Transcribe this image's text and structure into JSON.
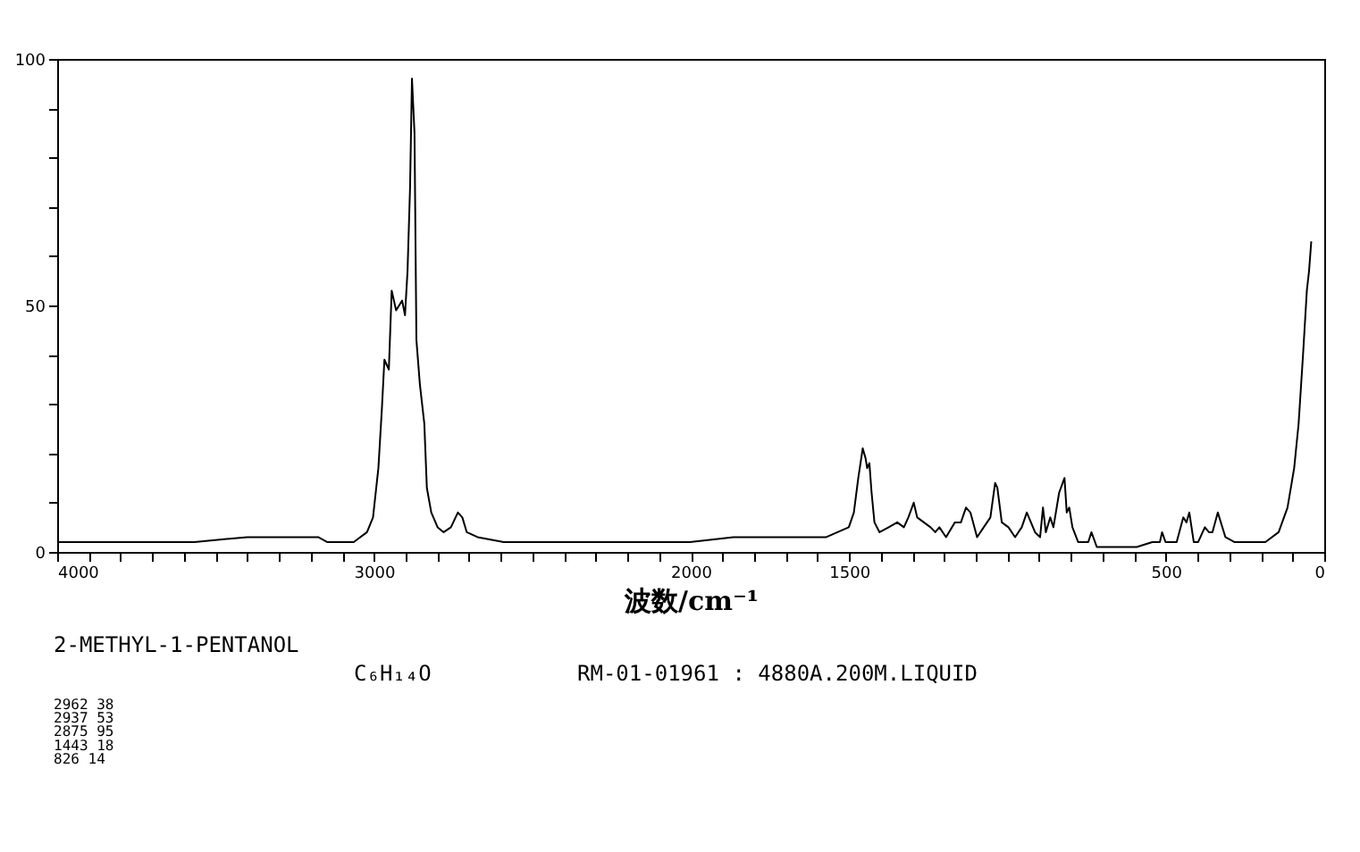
{
  "chart_data": {
    "type": "line",
    "xlabel": "波数/cm⁻¹",
    "x": [
      4000,
      3707,
      3567,
      3400,
      3176,
      3148,
      3064,
      3022,
      3003,
      2986,
      2975,
      2967,
      2953,
      2944,
      2930,
      2911,
      2902,
      2894,
      2886,
      2880,
      2872,
      2866,
      2855,
      2841,
      2833,
      2819,
      2799,
      2780,
      2757,
      2735,
      2721,
      2707,
      2673,
      2590,
      2310,
      2003,
      1865,
      1696,
      1572,
      1501,
      1485,
      1471,
      1457,
      1448,
      1443,
      1436,
      1429,
      1420,
      1404,
      1375,
      1348,
      1327,
      1313,
      1296,
      1285,
      1264,
      1243,
      1228,
      1215,
      1194,
      1166,
      1147,
      1131,
      1117,
      1096,
      1075,
      1054,
      1039,
      1032,
      1018,
      997,
      976,
      955,
      939,
      913,
      897,
      888,
      879,
      865,
      855,
      837,
      820,
      813,
      805,
      795,
      777,
      745,
      735,
      718,
      661,
      592,
      543,
      519,
      512,
      501,
      466,
      445,
      435,
      426,
      412,
      398,
      377,
      364,
      353,
      336,
      312,
      284,
      228,
      186,
      144,
      116,
      95,
      81,
      67,
      55,
      48,
      41
    ],
    "series": [
      {
        "color": "#000000",
        "values": [
          2,
          2,
          2,
          3,
          3,
          2,
          2,
          4,
          7,
          17,
          29,
          39,
          37,
          53,
          49,
          51,
          48,
          57,
          74,
          96,
          85,
          43,
          34,
          26,
          13,
          8,
          5,
          4,
          5,
          8,
          7,
          4,
          3,
          2,
          2,
          2,
          3,
          3,
          3,
          5,
          8,
          15,
          21,
          19,
          17,
          18,
          12,
          6,
          4,
          5,
          6,
          5,
          7,
          10,
          7,
          6,
          5,
          4,
          5,
          3,
          6,
          6,
          9,
          8,
          3,
          5,
          7,
          14,
          13,
          6,
          5,
          3,
          5,
          8,
          4,
          3,
          9,
          4,
          7,
          5,
          12,
          15,
          8,
          9,
          5,
          2,
          2,
          4,
          1,
          1,
          1,
          2,
          2,
          4,
          2,
          2,
          7,
          6,
          8,
          2,
          2,
          5,
          4,
          4,
          8,
          3,
          2,
          2,
          2,
          4,
          9,
          17,
          26,
          40,
          53,
          57,
          63
        ]
      }
    ],
    "xlim": [
      4000,
      0
    ],
    "xticks": [
      4000,
      {
        "value": 3900,
        "label": null
      },
      {
        "value": 3800,
        "label": null
      },
      {
        "value": 3700,
        "label": null
      },
      {
        "value": 3600,
        "label": null
      },
      {
        "value": 3500,
        "label": null
      },
      {
        "value": 3400,
        "label": null
      },
      {
        "value": 3300,
        "label": null
      },
      {
        "value": 3200,
        "label": null
      },
      {
        "value": 3100,
        "label": null
      },
      3000,
      {
        "value": 2900,
        "label": null
      },
      {
        "value": 2800,
        "label": null
      },
      {
        "value": 2700,
        "label": null
      },
      {
        "value": 2600,
        "label": null
      },
      {
        "value": 2500,
        "label": null
      },
      {
        "value": 2400,
        "label": null
      },
      {
        "value": 2300,
        "label": null
      },
      {
        "value": 2200,
        "label": null
      },
      {
        "value": 2100,
        "label": null
      },
      2000,
      {
        "value": 1900,
        "label": null
      },
      {
        "value": 1800,
        "label": null
      },
      {
        "value": 1700,
        "label": null
      },
      {
        "value": 1600,
        "label": null
      },
      1500,
      {
        "value": 1400,
        "label": null
      },
      {
        "value": 1300,
        "label": null
      },
      {
        "value": 1200,
        "label": null
      },
      {
        "value": 1100,
        "label": null
      },
      {
        "value": 1000,
        "label": null
      },
      {
        "value": 900,
        "label": null
      },
      {
        "value": 800,
        "label": null
      },
      {
        "value": 700,
        "label": null
      },
      {
        "value": 600,
        "label": null
      },
      500,
      {
        "value": 400,
        "label": null
      },
      {
        "value": 300,
        "label": null
      },
      {
        "value": 200,
        "label": null
      },
      {
        "value": 100,
        "label": null
      },
      0
    ],
    "ylim": [
      0,
      100
    ],
    "yticks": [
      0,
      {
        "value": 10,
        "label": null
      },
      {
        "value": 20,
        "label": null
      },
      {
        "value": 30,
        "label": null
      },
      {
        "value": 40,
        "label": null
      },
      50,
      {
        "value": 60,
        "label": null
      },
      {
        "value": 70,
        "label": null
      },
      {
        "value": 80,
        "label": null
      },
      {
        "value": 90,
        "label": null
      },
      100
    ],
    "grid": false,
    "annotations": [
      "2-METHYL-1-PENTANOL",
      "C₆H₁₄O",
      "RM-01-01961 : 4880A.200M.LIQUID",
      "2962    38",
      "2937    53",
      "2875    95",
      "1443    18",
      " 826    14"
    ]
  }
}
